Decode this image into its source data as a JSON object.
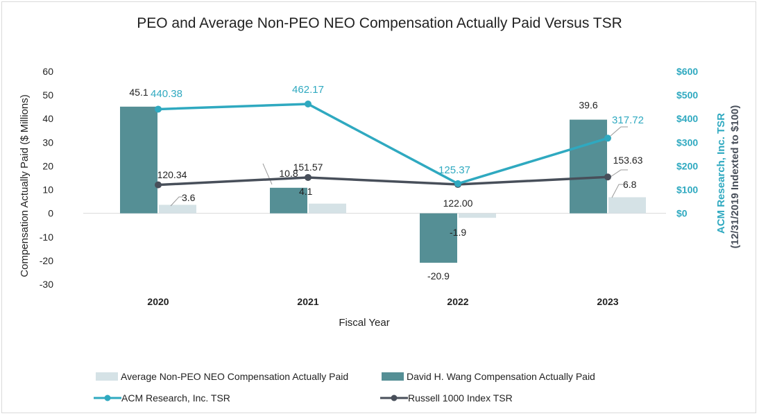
{
  "chart_data": {
    "type": "bar",
    "title": "PEO and Average Non-PEO NEO Compensation Actually Paid Versus TSR",
    "xlabel": "Fiscal Year",
    "ylabel": "Compensation Actually Paid ($ Millions)",
    "y2label_line1": "ACM Research, Inc. TSR",
    "y2label_line2": "(12/31/2019 Indexted to $100)",
    "categories": [
      "2020",
      "2021",
      "2022",
      "2023"
    ],
    "ylim": [
      -30,
      60
    ],
    "yticks": [
      "60",
      "50",
      "40",
      "30",
      "20",
      "10",
      "0",
      "-10",
      "-20",
      "-30"
    ],
    "y2lim": [
      0,
      600
    ],
    "y2ticks": [
      "$600",
      "$500",
      "$400",
      "$300",
      "$200",
      "$100",
      "$0"
    ],
    "bar_series": [
      {
        "name": "David H. Wang Compensation Actually Paid",
        "values": [
          45.1,
          10.8,
          -20.9,
          39.6
        ],
        "labels": [
          "45.1",
          "10.8",
          "-20.9",
          "39.6"
        ],
        "color": "#558f95"
      },
      {
        "name": "Average Non-PEO NEO Compensation Actually Paid",
        "values": [
          3.6,
          4.1,
          -1.9,
          6.8
        ],
        "labels": [
          "3.6",
          "4.1",
          "-1.9",
          "6.8"
        ],
        "color": "#d5e2e6"
      }
    ],
    "line_series": [
      {
        "name": "ACM Research, Inc. TSR",
        "values": [
          440.38,
          462.17,
          125.37,
          317.72
        ],
        "labels": [
          "440.38",
          "462.17",
          "125.37",
          "317.72"
        ],
        "color": "#2fa9c0"
      },
      {
        "name": "Russell 1000 Index TSR",
        "values": [
          120.34,
          151.57,
          122.0,
          153.63
        ],
        "labels": [
          "120.34",
          "151.57",
          "122.00",
          "153.63"
        ],
        "color": "#484f5a"
      }
    ],
    "legend_position": "bottom"
  }
}
